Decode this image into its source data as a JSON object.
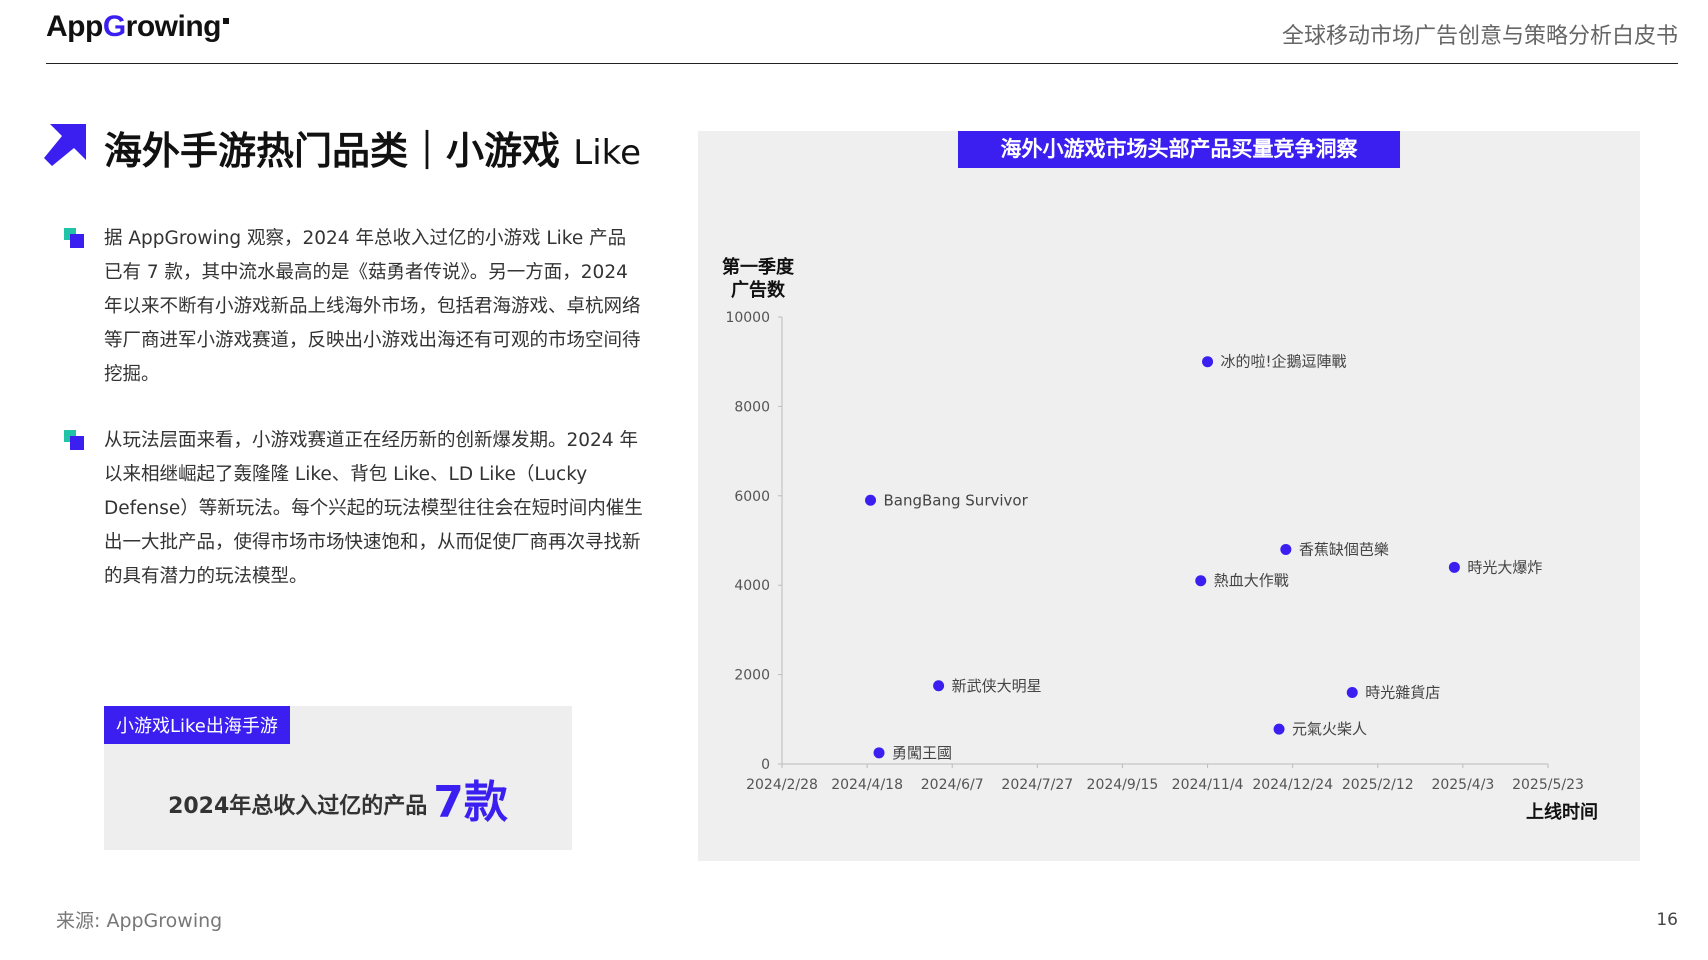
{
  "header": {
    "logo_prefix": "App",
    "logo_accent": "G",
    "logo_suffix": "rowing",
    "title": "全球移动市场广告创意与策略分析白皮书"
  },
  "section": {
    "title_main": "海外手游热门品类｜小游戏",
    "title_like": "Like"
  },
  "bullets": [
    {
      "text": "据 AppGrowing 观察，2024 年总收入过亿的小游戏 Like 产品已有 7 款，其中流水最高的是《菇勇者传说》。另一方面，2024 年以来不断有小游戏新品上线海外市场，包括君海游戏、卓杭网络等厂商进军小游戏赛道，反映出小游戏出海还有可观的市场空间待挖掘。"
    },
    {
      "text": "从玩法层面来看，小游戏赛道正在经历新的创新爆发期。2024 年以来相继崛起了轰隆隆 Like、背包 Like、LD Like（Lucky Defense）等新玩法。每个兴起的玩法模型往往会在短时间内催生出一大批产品，使得市场市场快速饱和，从而促使厂商再次寻找新的具有潜力的玩法模型。"
    }
  ],
  "stat": {
    "tag": "小游戏Like出海手游",
    "label": "2024年总收入过亿的产品",
    "value": "7款"
  },
  "chart_data": {
    "type": "scatter",
    "title": "海外小游戏市场头部产品买量竞争洞察",
    "ylabel_line1": "第一季度",
    "ylabel_line2": "广告数",
    "xlabel": "上线时间",
    "x_ticks": [
      "2024/2/28",
      "2024/4/18",
      "2024/6/7",
      "2024/7/27",
      "2024/9/15",
      "2024/11/4",
      "2024/12/24",
      "2025/2/12",
      "2025/4/3",
      "2025/5/23"
    ],
    "y_ticks": [
      0,
      2000,
      4000,
      6000,
      8000,
      10000
    ],
    "xlim": [
      "2024/2/28",
      "2025/5/23"
    ],
    "ylim": [
      0,
      10000
    ],
    "point_color": "#3a1ff0",
    "points": [
      {
        "label": "冰的啦!企鵝逗陣戰",
        "x": "2024/11/4",
        "y": 9000
      },
      {
        "label": "BangBang Survivor",
        "x": "2024/4/20",
        "y": 5900
      },
      {
        "label": "香蕉缺個芭樂",
        "x": "2024/12/20",
        "y": 4800
      },
      {
        "label": "時光大爆炸",
        "x": "2025/3/29",
        "y": 4400
      },
      {
        "label": "熱血大作戰",
        "x": "2024/10/31",
        "y": 4100
      },
      {
        "label": "新武侠大明星",
        "x": "2024/5/30",
        "y": 1750
      },
      {
        "label": "時光雜貨店",
        "x": "2025/1/28",
        "y": 1600
      },
      {
        "label": "元氣火柴人",
        "x": "2024/12/16",
        "y": 780
      },
      {
        "label": "勇闖王國",
        "x": "2024/4/25",
        "y": 250
      }
    ]
  },
  "footer": {
    "source": "来源: AppGrowing",
    "page": "16"
  }
}
